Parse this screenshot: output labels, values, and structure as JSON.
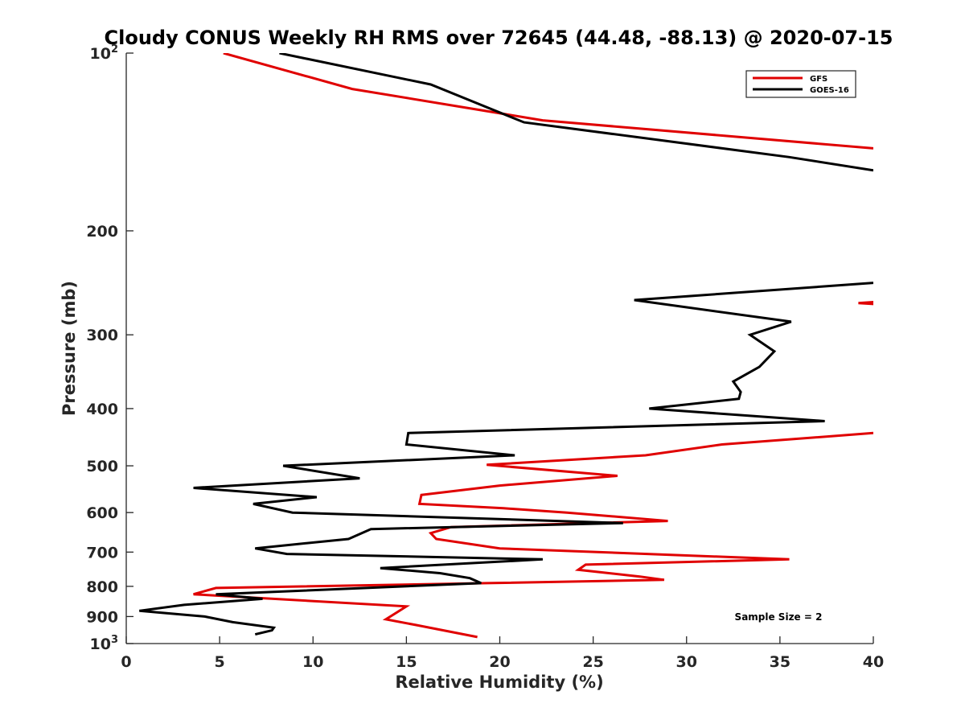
{
  "chart_data": {
    "type": "line",
    "title": "Cloudy CONUS Weekly RH RMS over 72645 (44.48, -88.13) @ 2020-07-15",
    "xlabel": "Relative Humidity (%)",
    "ylabel": "Pressure (mb)",
    "xlim": [
      0,
      40
    ],
    "ylim": [
      100,
      1000
    ],
    "y_scale": "log",
    "y_reversed": true,
    "grid": false,
    "x_ticks": [
      "0",
      "5",
      "10",
      "15",
      "20",
      "25",
      "30",
      "35",
      "40"
    ],
    "y_ticks": [
      {
        "value": 100,
        "label": "10",
        "sup": "2"
      },
      {
        "value": 200,
        "label": "200",
        "sup": ""
      },
      {
        "value": 300,
        "label": "300",
        "sup": ""
      },
      {
        "value": 400,
        "label": "400",
        "sup": ""
      },
      {
        "value": 500,
        "label": "500",
        "sup": ""
      },
      {
        "value": 600,
        "label": "600",
        "sup": ""
      },
      {
        "value": 700,
        "label": "700",
        "sup": ""
      },
      {
        "value": 800,
        "label": "800",
        "sup": ""
      },
      {
        "value": 900,
        "label": "900",
        "sup": ""
      },
      {
        "value": 1000,
        "label": "10",
        "sup": "3"
      }
    ],
    "legend_position": "top-right",
    "annotation": "Sample Size = 2",
    "series": [
      {
        "name": "GFS",
        "color": "#e00000",
        "segments": [
          [
            [
              5.2,
              100
            ],
            [
              12.1,
              115
            ],
            [
              22.3,
              130
            ],
            [
              40,
              145
            ]
          ],
          [
            [
              39.2,
              265
            ],
            [
              40,
              264
            ],
            [
              40,
              266
            ],
            [
              39.2,
              265
            ]
          ],
          [
            [
              40,
              440
            ],
            [
              31.9,
              460
            ],
            [
              27.8,
              480
            ],
            [
              19.3,
              498
            ],
            [
              26.3,
              520
            ],
            [
              20,
              540
            ],
            [
              15.8,
              560
            ],
            [
              15.7,
              580
            ],
            [
              20.2,
              590
            ],
            [
              23.6,
              600
            ],
            [
              29,
              620
            ],
            [
              17.4,
              635
            ],
            [
              16.3,
              650
            ],
            [
              16.6,
              665
            ],
            [
              20,
              690
            ],
            [
              35.5,
              720
            ],
            [
              24.6,
              735
            ],
            [
              24.2,
              750
            ],
            [
              27.5,
              770
            ],
            [
              28.8,
              780
            ],
            [
              19.3,
              790
            ],
            [
              4.8,
              805
            ],
            [
              3.6,
              825
            ],
            [
              15,
              865
            ],
            [
              13.9,
              910
            ],
            [
              15.5,
              930
            ],
            [
              18.8,
              975
            ]
          ]
        ]
      },
      {
        "name": "GOES-16",
        "color": "#000000",
        "segments": [
          [
            [
              8.2,
              100
            ],
            [
              16.3,
              113
            ],
            [
              21.3,
              131
            ],
            [
              35.5,
              150
            ],
            [
              40,
              158
            ]
          ],
          [
            [
              40,
              245
            ],
            [
              27.2,
              262
            ],
            [
              35.6,
              285
            ],
            [
              33.4,
              300
            ],
            [
              34.7,
              320
            ],
            [
              33.9,
              340
            ],
            [
              32.5,
              360
            ],
            [
              32.9,
              375
            ],
            [
              32.8,
              385
            ],
            [
              28,
              400
            ],
            [
              37.4,
              420
            ],
            [
              15.1,
              440
            ],
            [
              15,
              460
            ],
            [
              20.8,
              480
            ],
            [
              8.4,
              500
            ],
            [
              12.5,
              525
            ],
            [
              3.6,
              545
            ],
            [
              10.2,
              565
            ],
            [
              6.8,
              580
            ],
            [
              8.9,
              600
            ],
            [
              26.6,
              625
            ],
            [
              13.1,
              640
            ],
            [
              11.9,
              665
            ],
            [
              6.9,
              690
            ],
            [
              8.6,
              705
            ],
            [
              22.3,
              720
            ],
            [
              13.6,
              745
            ],
            [
              16.8,
              760
            ],
            [
              18.4,
              775
            ],
            [
              19,
              790
            ],
            [
              4.8,
              825
            ],
            [
              7.3,
              840
            ],
            [
              3.1,
              860
            ],
            [
              0.7,
              880
            ],
            [
              4.2,
              900
            ],
            [
              5.7,
              920
            ],
            [
              7.9,
              940
            ],
            [
              7.8,
              950
            ],
            [
              6.9,
              965
            ]
          ]
        ]
      }
    ]
  }
}
